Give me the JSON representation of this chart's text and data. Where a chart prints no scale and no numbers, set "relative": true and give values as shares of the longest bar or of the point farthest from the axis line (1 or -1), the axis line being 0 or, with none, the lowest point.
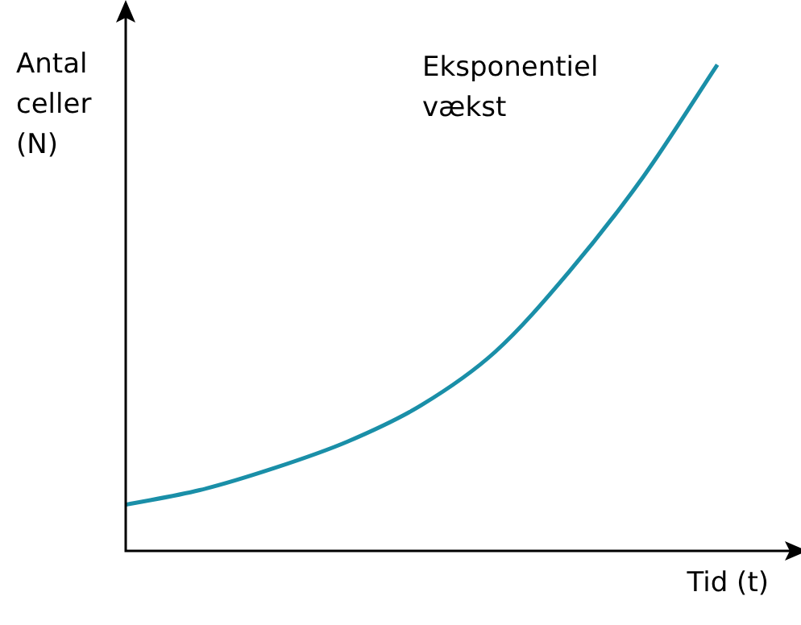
{
  "chart_data": {
    "type": "line",
    "relative": true,
    "ylabel": "Antal celler (N)",
    "xlabel": "Tid (t)",
    "annotations": [
      "Eksponentiel vækst"
    ],
    "categories": [
      null,
      null,
      null,
      null,
      null,
      null,
      null,
      null,
      null,
      null
    ],
    "series": [
      {
        "color": "#1a8fa8",
        "values": [
          0.095,
          0.125,
          0.17,
          0.225,
          0.3,
          0.41,
          0.575,
          0.77,
          1,
          null
        ]
      }
    ],
    "legend": false,
    "marker": "none",
    "line_style": "solid"
  }
}
